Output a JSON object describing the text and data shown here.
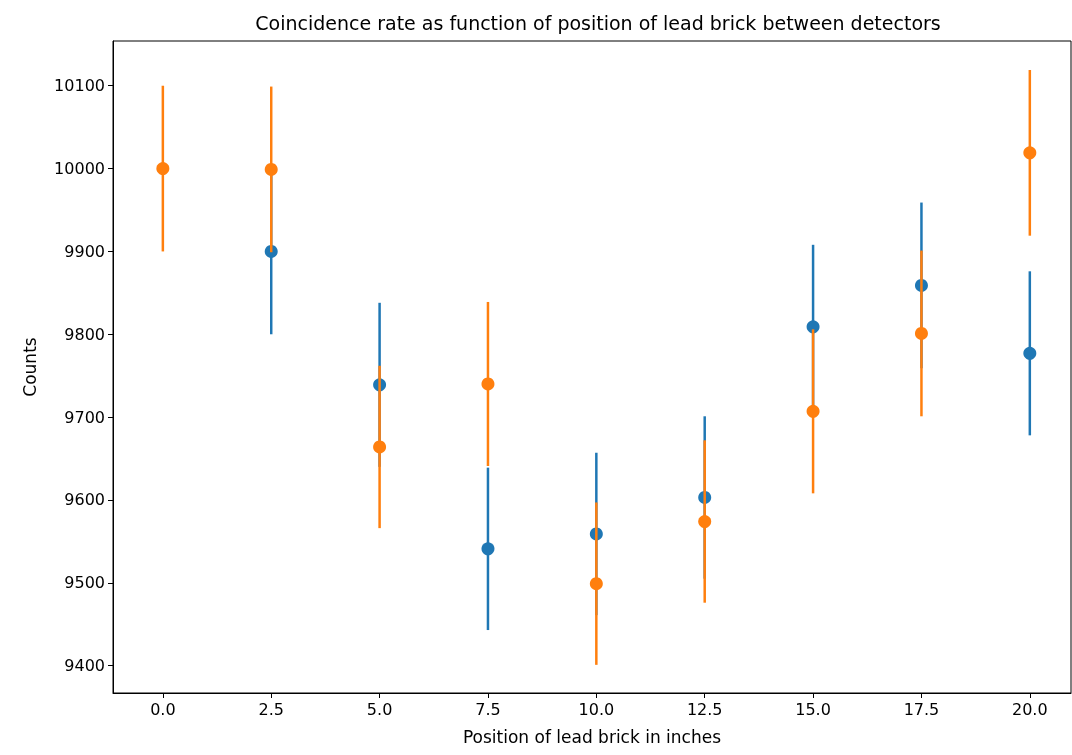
{
  "chart_data": {
    "type": "scatter",
    "title": "Coincidence rate as function of position of lead brick between detectors",
    "xlabel": "Position of lead brick in inches",
    "ylabel": "Counts",
    "xlim": [
      -1.15,
      20.95
    ],
    "ylim": [
      9367,
      10154
    ],
    "xticks": [
      {
        "value": 0,
        "label": "0.0"
      },
      {
        "value": 2.5,
        "label": "2.5"
      },
      {
        "value": 5,
        "label": "5.0"
      },
      {
        "value": 7.5,
        "label": "7.5"
      },
      {
        "value": 10,
        "label": "10.0"
      },
      {
        "value": 12.5,
        "label": "12.5"
      },
      {
        "value": 15,
        "label": "15.0"
      },
      {
        "value": 17.5,
        "label": "17.5"
      },
      {
        "value": 20,
        "label": "20.0"
      }
    ],
    "yticks": [
      9400,
      9500,
      9600,
      9700,
      9800,
      9900,
      10000,
      10100
    ],
    "marker": "circle",
    "series": [
      {
        "color": "#1f77b4",
        "x": [
          2.5,
          5,
          7.5,
          10,
          12.5,
          15,
          17.5,
          20
        ],
        "values": [
          9900,
          9739,
          9541,
          9559,
          9603,
          9809,
          9859,
          9777
        ],
        "errors": [
          100,
          99,
          98,
          98,
          98,
          99,
          100,
          99
        ]
      },
      {
        "color": "#ff7f0e",
        "x": [
          0,
          2.5,
          5,
          7.5,
          10,
          12.5,
          15,
          17.5,
          20
        ],
        "values": [
          10000,
          9999,
          9664,
          9740,
          9499,
          9574,
          9707,
          9801,
          10019
        ],
        "errors": [
          100,
          100,
          98,
          99,
          98,
          98,
          99,
          100,
          100
        ]
      }
    ]
  }
}
